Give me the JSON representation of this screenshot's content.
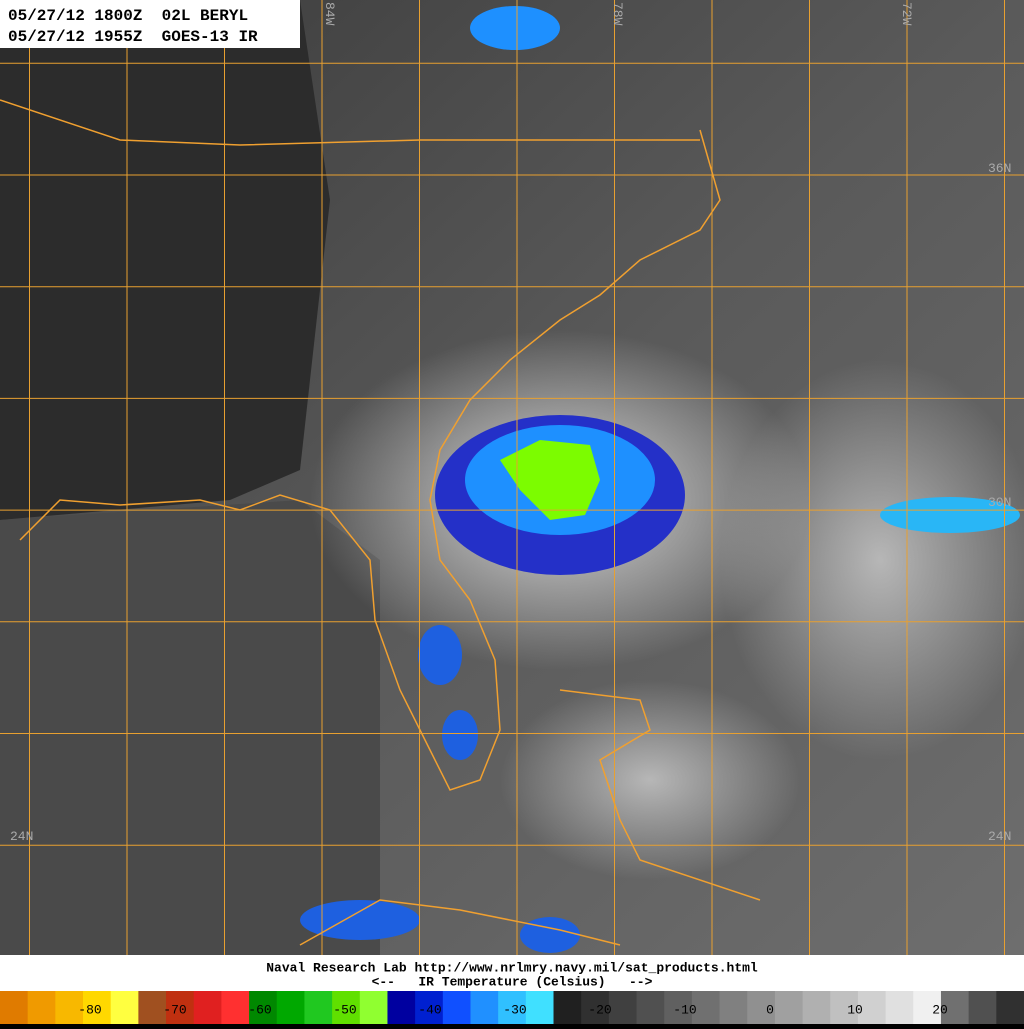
{
  "header": {
    "lines": [
      "05/27/12 1800Z  02L BERYL",
      "05/27/12 1955Z  GOES-13 IR"
    ]
  },
  "grid_labels": {
    "longitudes": [
      "84W",
      "78W",
      "72W"
    ],
    "latitudes": [
      "36N",
      "30N",
      "24N"
    ]
  },
  "footer": {
    "source": "Naval Research Lab http://www.nrlmry.navy.mil/sat_products.html",
    "caption": "<--   IR Temperature (Celsius)   -->"
  },
  "color_scale": {
    "labels": [
      -80,
      -70,
      -60,
      -50,
      -40,
      -30,
      -20,
      -10,
      0,
      10,
      20
    ]
  }
}
